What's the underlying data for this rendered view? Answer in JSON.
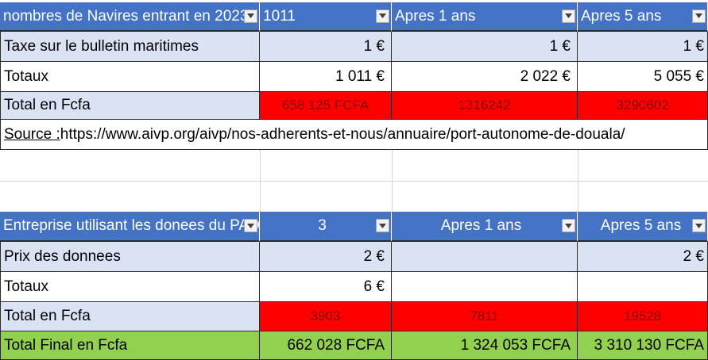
{
  "table1": {
    "header": {
      "label": "nombres de Navires entrant en 2023",
      "col1": "1011",
      "col2": "Apres 1 ans",
      "col3": "Apres 5 ans"
    },
    "rows": [
      {
        "label": "Taxe sur le bulletin maritimes",
        "v1": "1 €",
        "v2": "1 €",
        "v3": "1 €"
      },
      {
        "label": "Totaux",
        "v1": "1 011 €",
        "v2": "2 022 €",
        "v3": "5 055 €"
      },
      {
        "label": "Total en Fcfa",
        "v1": "658 125 FCFA",
        "v2": "1316242",
        "v3": "3290602"
      }
    ],
    "source": {
      "prefix": "Source :",
      "url": "https://www.aivp.org/aivp/nos-adherents-et-nous/annuaire/port-autonome-de-douala/"
    }
  },
  "table2": {
    "header": {
      "label": "Entreprise utilisant les donees du PAD",
      "col1": "3",
      "col2": "Apres 1 ans",
      "col3": "Apres 5 ans"
    },
    "rows": [
      {
        "label": "Prix des donnees",
        "v1": "2 €",
        "v2": "",
        "v3": "2 €"
      },
      {
        "label": "Totaux",
        "v1": "6 €",
        "v2": "",
        "v3": ""
      },
      {
        "label": "Total en Fcfa",
        "v1": "3903",
        "v2": "7811",
        "v3": "19528"
      },
      {
        "label": "Total Final en Fcfa",
        "v1": "662 028 FCFA",
        "v2": "1 324 053 FCFA",
        "v3": "3 310 130 FCFA"
      }
    ]
  },
  "colors": {
    "header_blue": "#4472c4",
    "light_blue": "#dae3f3",
    "red": "#ff0000",
    "green": "#92d050"
  }
}
